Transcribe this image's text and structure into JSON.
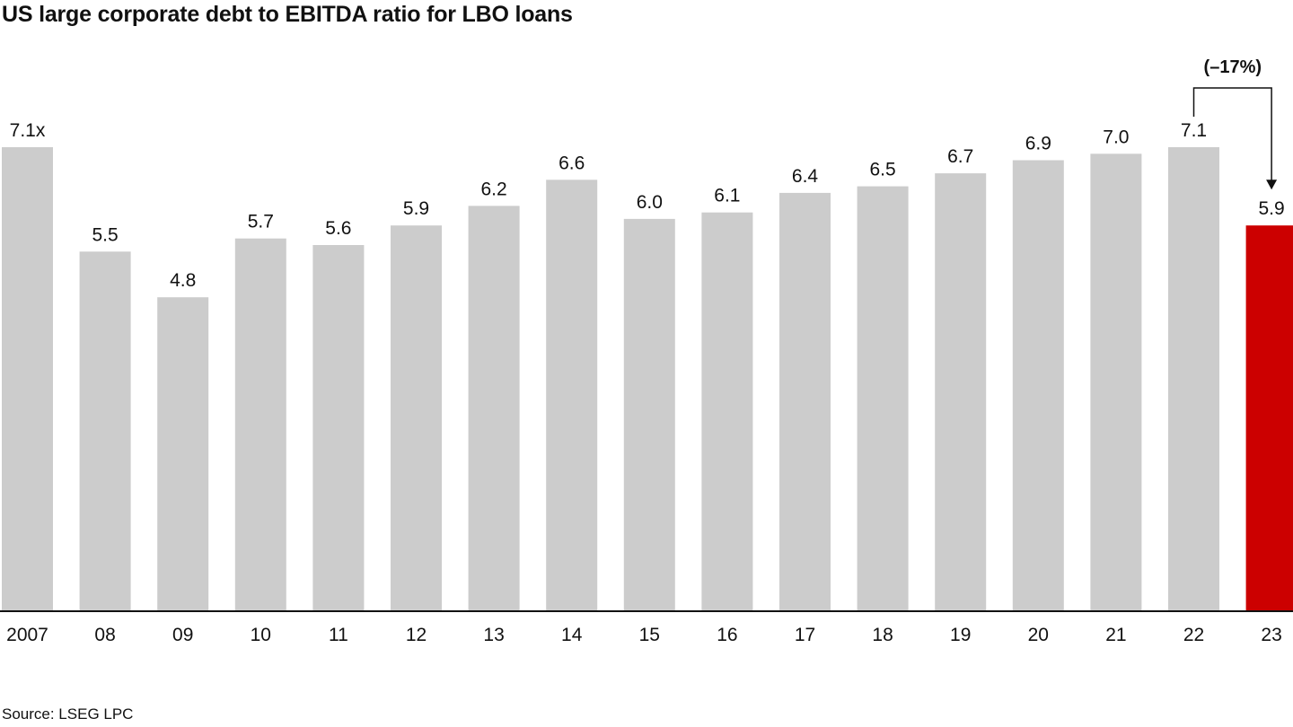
{
  "chart_data": {
    "type": "bar",
    "title": "US large corporate debt to EBITDA ratio for LBO loans",
    "categories": [
      "2007",
      "08",
      "09",
      "10",
      "11",
      "12",
      "13",
      "14",
      "15",
      "16",
      "17",
      "18",
      "19",
      "20",
      "21",
      "22",
      "23"
    ],
    "values": [
      7.1,
      5.5,
      4.8,
      5.7,
      5.6,
      5.9,
      6.2,
      6.6,
      6.0,
      6.1,
      6.4,
      6.5,
      6.7,
      6.9,
      7.0,
      7.1,
      5.9
    ],
    "value_labels": [
      "7.1x",
      "5.5",
      "4.8",
      "5.7",
      "5.6",
      "5.9",
      "6.2",
      "6.6",
      "6.0",
      "6.1",
      "6.4",
      "6.5",
      "6.7",
      "6.9",
      "7.0",
      "7.1",
      "5.9"
    ],
    "highlight_index": 16,
    "ylim": [
      0,
      7.1
    ],
    "xlabel": "",
    "ylabel": "",
    "grid": false,
    "annotation": {
      "label": "(–17%)",
      "from_category": "22",
      "to_category": "23"
    },
    "colors": {
      "bar": "#cccccc",
      "highlight": "#cc0000",
      "baseline": "#111111",
      "text": "#111111"
    }
  },
  "source": "Source: LSEG LPC"
}
